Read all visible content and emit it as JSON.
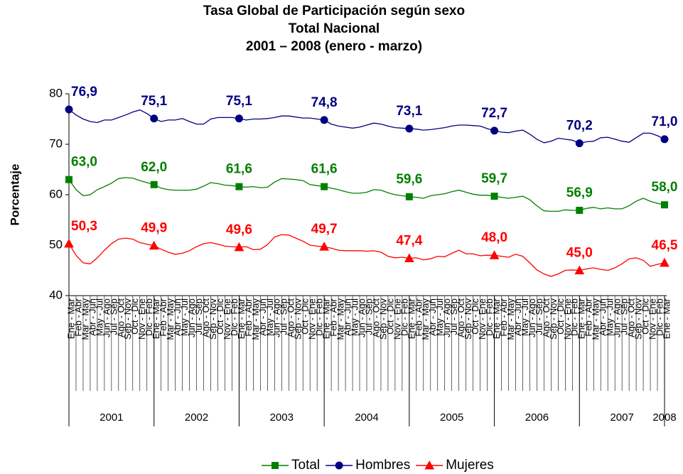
{
  "chart_data": {
    "type": "line",
    "title": [
      "Tasa Global de Participación según sexo",
      "Total Nacional",
      "2001 – 2008 (enero - marzo)"
    ],
    "ylabel": "Porcentaje",
    "ylim": [
      40,
      80
    ],
    "yticks": [
      40,
      50,
      60,
      70,
      80
    ],
    "categories": [
      "Ene - Mar",
      "Feb - Abr",
      "Mar - May",
      "Abr - Jun",
      "May - Jul",
      "Jun - Ago",
      "Jul - Sep",
      "Ago - Oct",
      "Sep - Nov",
      "Oct - Dic",
      "Nov - Ene",
      "Dic - Feb",
      "Ene - Mar",
      "Feb - Abr",
      "Mar - May",
      "Abr - Jun",
      "May - Jul",
      "Jun - Ago",
      "Jul - Sep",
      "Ago - Oct",
      "Sep - Nov",
      "Oct - Dic",
      "Nov - Ene",
      "Dic - Feb",
      "Ene - Mar",
      "Feb - Abr",
      "Mar - May",
      "Abr - Jun",
      "May - Jul",
      "Jun - Ago",
      "Jul - Sep",
      "Ago - Oct",
      "Sep - Nov",
      "Oct - Dic",
      "Nov - Ene",
      "Dic - Feb",
      "Ene - Mar",
      "Feb - Abr",
      "Mar - May",
      "Abr - Jun",
      "May - Jul",
      "Jun - Ago",
      "Jul - Sep",
      "Ago - Oct",
      "Sep - Nov",
      "Oct - Dic",
      "Nov - Ene",
      "Dic - Feb",
      "Ene - Mar",
      "Feb - Abr",
      "Mar - May",
      "Abr - Jun",
      "May - Jul",
      "Jun - Ago",
      "Jul - Sep",
      "Ago - Oct",
      "Sep - Nov",
      "Oct - Dic",
      "Nov - Ene",
      "Dic - Feb",
      "Ene - Mar",
      "Feb - Abr",
      "Mar - May",
      "Abr - Jun",
      "May - Jul",
      "Jun - Ago",
      "Jul - Sep",
      "Ago - Oct",
      "Sep - Nov",
      "Oct - Dic",
      "Nov - Ene",
      "Dic - Feb",
      "Ene - Mar",
      "Feb - Abr",
      "Mar - May",
      "Abr - Jun",
      "May - Jul",
      "Jun - Ago",
      "Jul - Sep",
      "Ago - Oct",
      "Sep - Nov",
      "Oct - Dic",
      "Nov - Ene",
      "Dic - Feb",
      "Ene - Mar"
    ],
    "years": [
      "2001",
      "2002",
      "2003",
      "2004",
      "2005",
      "2006",
      "2007",
      "2008"
    ],
    "series": [
      {
        "name": "Total",
        "color": "#008000",
        "marker": "square",
        "values": [
          63.0,
          61.0,
          59.8,
          60.0,
          61.0,
          61.6,
          62.3,
          63.2,
          63.4,
          63.3,
          62.8,
          62.4,
          62.0,
          61.3,
          61.0,
          60.9,
          60.9,
          60.9,
          61.1,
          61.7,
          62.4,
          62.2,
          61.9,
          61.8,
          61.6,
          61.5,
          61.6,
          61.4,
          61.5,
          62.5,
          63.2,
          63.1,
          63.0,
          62.8,
          62.0,
          61.8,
          61.6,
          61.3,
          61.0,
          60.6,
          60.3,
          60.3,
          60.5,
          61.0,
          60.9,
          60.4,
          60.0,
          59.8,
          59.6,
          59.5,
          59.3,
          59.8,
          60.0,
          60.2,
          60.6,
          60.9,
          60.5,
          60.1,
          59.9,
          59.9,
          59.7,
          59.5,
          59.3,
          59.5,
          59.7,
          59.0,
          57.8,
          56.8,
          56.7,
          56.7,
          57.0,
          56.9,
          56.9,
          57.3,
          57.5,
          57.2,
          57.4,
          57.2,
          57.2,
          57.8,
          58.7,
          59.3,
          58.7,
          58.3,
          58.0
        ],
        "value_labels": [
          "63,0",
          null,
          null,
          null,
          null,
          null,
          null,
          null,
          null,
          null,
          null,
          null,
          "62,0",
          null,
          null,
          null,
          null,
          null,
          null,
          null,
          null,
          null,
          null,
          null,
          "61,6",
          null,
          null,
          null,
          null,
          null,
          null,
          null,
          null,
          null,
          null,
          null,
          "61,6",
          null,
          null,
          null,
          null,
          null,
          null,
          null,
          null,
          null,
          null,
          null,
          "59,6",
          null,
          null,
          null,
          null,
          null,
          null,
          null,
          null,
          null,
          null,
          null,
          "59,7",
          null,
          null,
          null,
          null,
          null,
          null,
          null,
          null,
          null,
          null,
          null,
          "56,9",
          null,
          null,
          null,
          null,
          null,
          null,
          null,
          null,
          null,
          null,
          null,
          "58,0"
        ]
      },
      {
        "name": "Hombres",
        "color": "#000080",
        "marker": "circle",
        "values": [
          76.9,
          75.8,
          75.0,
          74.5,
          74.3,
          74.8,
          74.8,
          75.3,
          75.8,
          76.4,
          76.8,
          76.1,
          75.1,
          74.5,
          74.8,
          74.8,
          75.1,
          74.5,
          74.0,
          74.0,
          75.0,
          75.3,
          75.3,
          75.3,
          75.1,
          74.8,
          75.0,
          75.0,
          75.1,
          75.3,
          75.6,
          75.6,
          75.4,
          75.2,
          75.2,
          75.0,
          74.8,
          74.0,
          73.6,
          73.4,
          73.2,
          73.4,
          73.8,
          74.2,
          74.0,
          73.6,
          73.3,
          73.2,
          73.1,
          73.0,
          72.8,
          72.9,
          73.1,
          73.3,
          73.6,
          73.8,
          73.8,
          73.7,
          73.6,
          73.1,
          72.7,
          72.4,
          72.3,
          72.6,
          72.8,
          72.0,
          71.0,
          70.3,
          70.6,
          71.2,
          71.0,
          70.8,
          70.2,
          70.5,
          70.6,
          71.3,
          71.4,
          71.0,
          70.6,
          70.4,
          71.3,
          72.2,
          72.2,
          71.7,
          71.0
        ],
        "value_labels": [
          "76,9",
          null,
          null,
          null,
          null,
          null,
          null,
          null,
          null,
          null,
          null,
          null,
          "75,1",
          null,
          null,
          null,
          null,
          null,
          null,
          null,
          null,
          null,
          null,
          null,
          "75,1",
          null,
          null,
          null,
          null,
          null,
          null,
          null,
          null,
          null,
          null,
          null,
          "74,8",
          null,
          null,
          null,
          null,
          null,
          null,
          null,
          null,
          null,
          null,
          null,
          "73,1",
          null,
          null,
          null,
          null,
          null,
          null,
          null,
          null,
          null,
          null,
          null,
          "72,7",
          null,
          null,
          null,
          null,
          null,
          null,
          null,
          null,
          null,
          null,
          null,
          "70,2",
          null,
          null,
          null,
          null,
          null,
          null,
          null,
          null,
          null,
          null,
          null,
          "71,0"
        ]
      },
      {
        "name": "Mujeres",
        "color": "#ff0000",
        "marker": "triangle",
        "values": [
          50.3,
          48.0,
          46.5,
          46.3,
          47.5,
          49.0,
          50.3,
          51.2,
          51.4,
          51.2,
          50.5,
          50.2,
          49.9,
          49.2,
          48.6,
          48.2,
          48.4,
          48.9,
          49.7,
          50.3,
          50.5,
          50.2,
          49.8,
          49.7,
          49.6,
          49.7,
          49.1,
          49.2,
          50.1,
          51.6,
          52.1,
          52.0,
          51.4,
          50.8,
          50.0,
          49.8,
          49.7,
          49.4,
          49.0,
          48.9,
          48.9,
          48.9,
          48.8,
          48.9,
          48.6,
          47.8,
          47.5,
          47.6,
          47.4,
          47.5,
          47.1,
          47.3,
          47.8,
          47.7,
          48.4,
          49.0,
          48.3,
          48.3,
          47.9,
          48.0,
          48.0,
          47.8,
          47.6,
          48.2,
          47.8,
          46.5,
          45.1,
          44.3,
          43.8,
          44.3,
          45.0,
          45.1,
          45.0,
          45.3,
          45.5,
          45.2,
          45.0,
          45.5,
          46.3,
          47.3,
          47.5,
          47.0,
          45.8,
          46.2,
          46.5
        ],
        "value_labels": [
          "50,3",
          null,
          null,
          null,
          null,
          null,
          null,
          null,
          null,
          null,
          null,
          null,
          "49,9",
          null,
          null,
          null,
          null,
          null,
          null,
          null,
          null,
          null,
          null,
          null,
          "49,6",
          null,
          null,
          null,
          null,
          null,
          null,
          null,
          null,
          null,
          null,
          null,
          "49,7",
          null,
          null,
          null,
          null,
          null,
          null,
          null,
          null,
          null,
          null,
          null,
          "47,4",
          null,
          null,
          null,
          null,
          null,
          null,
          null,
          null,
          null,
          null,
          null,
          "48,0",
          null,
          null,
          null,
          null,
          null,
          null,
          null,
          null,
          null,
          null,
          null,
          "45,0",
          null,
          null,
          null,
          null,
          null,
          null,
          null,
          null,
          null,
          null,
          null,
          "46,5"
        ]
      }
    ]
  }
}
